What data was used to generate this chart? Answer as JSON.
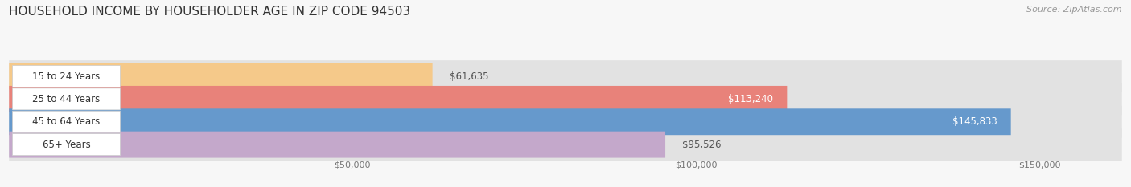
{
  "title": "HOUSEHOLD INCOME BY HOUSEHOLDER AGE IN ZIP CODE 94503",
  "source": "Source: ZipAtlas.com",
  "categories": [
    "15 to 24 Years",
    "25 to 44 Years",
    "45 to 64 Years",
    "65+ Years"
  ],
  "values": [
    61635,
    113240,
    145833,
    95526
  ],
  "bar_colors": [
    "#f5c98a",
    "#e8827a",
    "#6699cc",
    "#c4a8cb"
  ],
  "value_labels": [
    "$61,635",
    "$113,240",
    "$145,833",
    "$95,526"
  ],
  "value_inside": [
    false,
    true,
    true,
    false
  ],
  "xlim_max": 162000,
  "xticks": [
    50000,
    100000,
    150000
  ],
  "xtick_labels": [
    "$50,000",
    "$100,000",
    "$150,000"
  ],
  "background_color": "#f7f7f7",
  "bar_bg_color": "#e2e2e2",
  "label_bg_color": "#ffffff",
  "title_fontsize": 11,
  "source_fontsize": 8,
  "label_fontsize": 8.5,
  "value_fontsize": 8.5,
  "tick_fontsize": 8
}
